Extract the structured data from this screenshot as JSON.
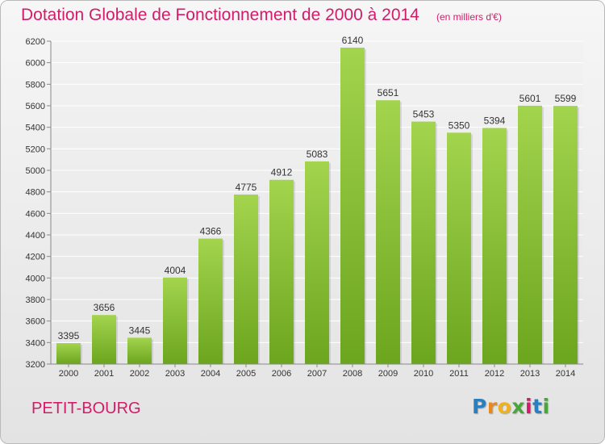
{
  "header": {
    "title": "Dotation Globale de Fonctionnement de 2000 à 2014",
    "subtitle": "(en milliers d'€)"
  },
  "commune": "PETIT-BOURG",
  "logo": {
    "letters": [
      "P",
      "r",
      "o",
      "x",
      "i",
      "t",
      "i"
    ],
    "colors": [
      "#2a7fc1",
      "#e8891b",
      "#f0b21c",
      "#4aa53a",
      "#d11c6a",
      "#2a7fc1",
      "#4aa53a"
    ]
  },
  "chart_data": {
    "type": "bar",
    "title": "Dotation Globale de Fonctionnement de 2000 à 2014",
    "categories": [
      "2000",
      "2001",
      "2002",
      "2003",
      "2004",
      "2005",
      "2006",
      "2007",
      "2008",
      "2009",
      "2010",
      "2011",
      "2012",
      "2013",
      "2014"
    ],
    "values": [
      3395,
      3656,
      3445,
      4004,
      4366,
      4775,
      4912,
      5083,
      6140,
      5651,
      5453,
      5350,
      5394,
      5601,
      5599
    ],
    "ylim": [
      3200,
      6200
    ],
    "yticks": [
      3200,
      3400,
      3600,
      3800,
      4000,
      4200,
      4400,
      4600,
      4800,
      5000,
      5200,
      5400,
      5600,
      5800,
      6000,
      6200
    ],
    "grid": true,
    "bar_color": "#8cc63f"
  }
}
